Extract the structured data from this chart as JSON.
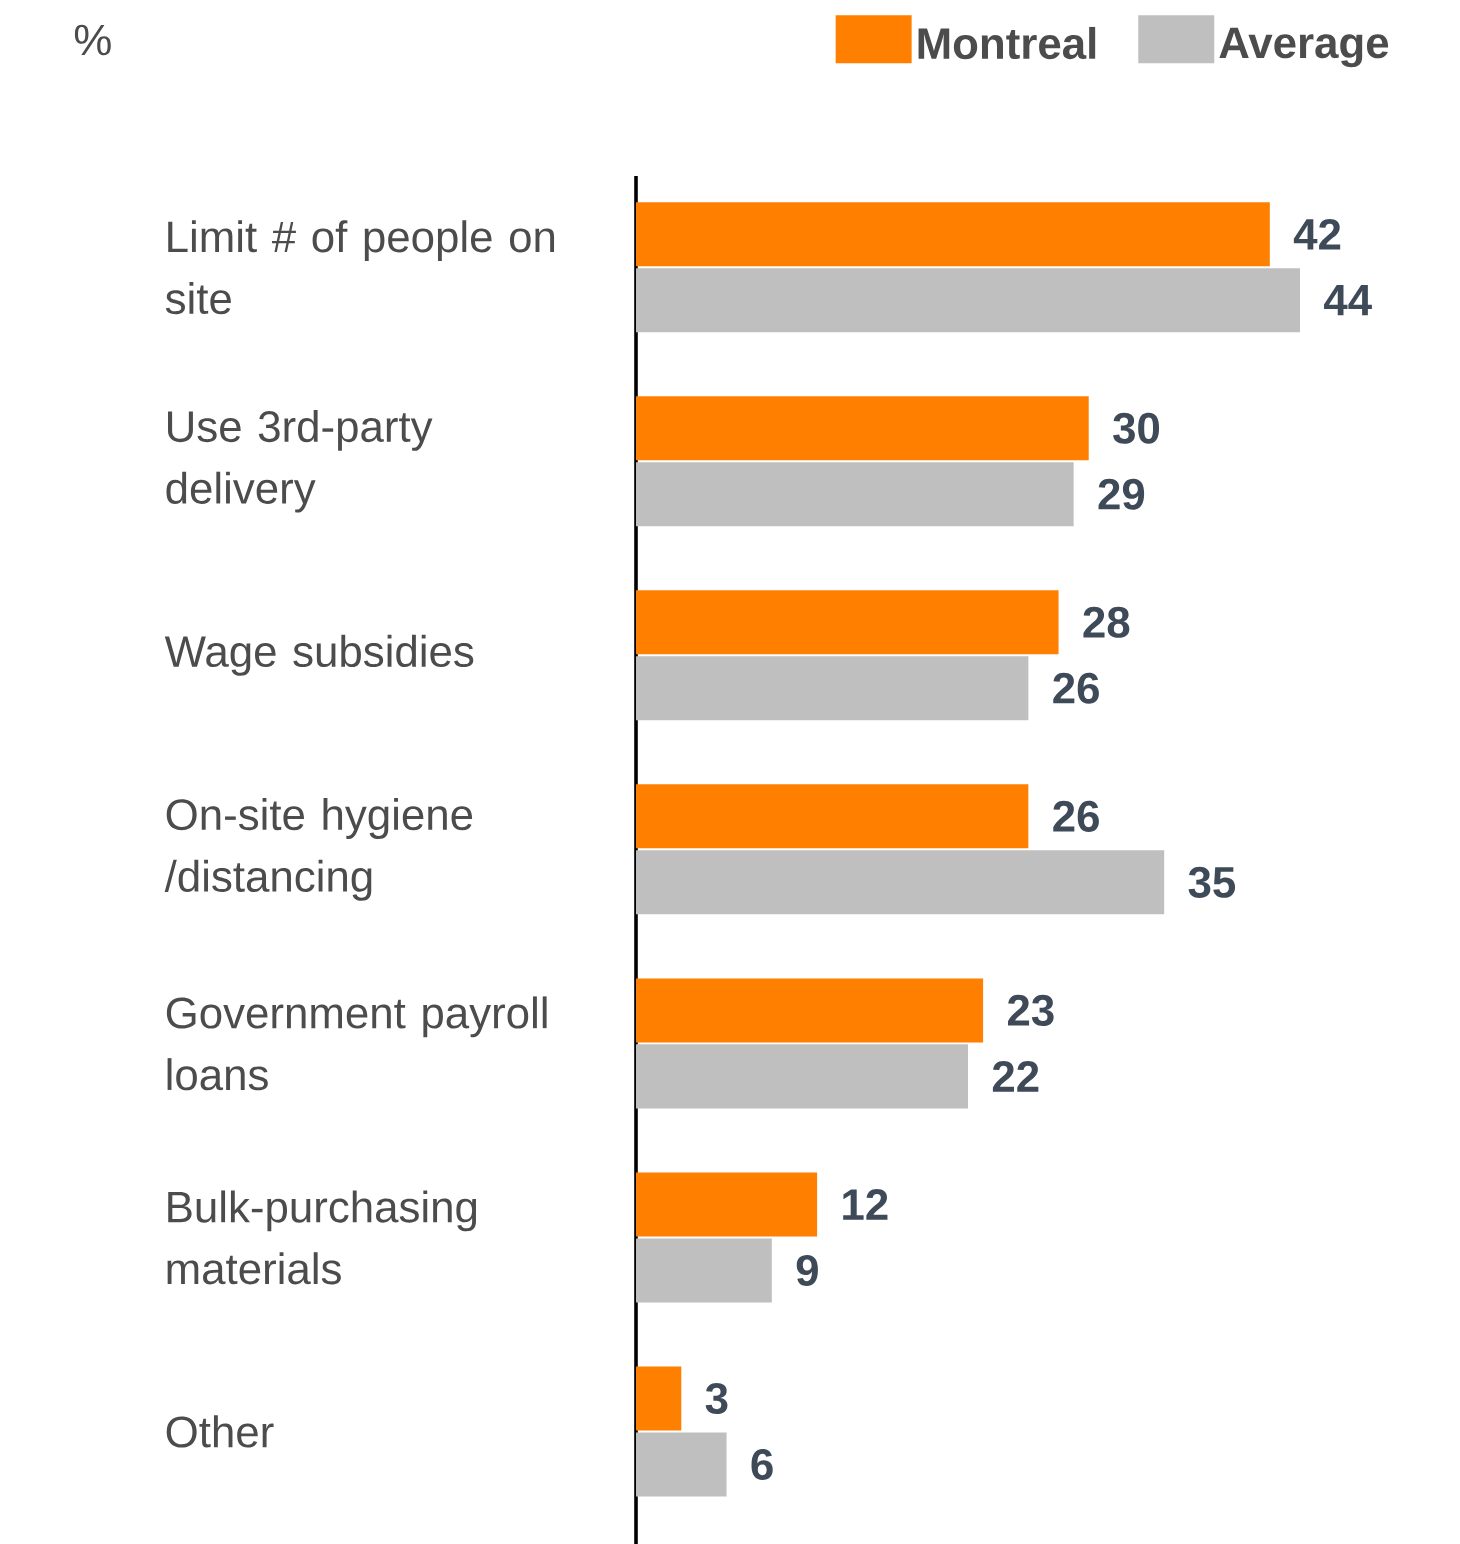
{
  "chart_data": {
    "type": "bar",
    "orientation": "horizontal",
    "annotations": [
      "%"
    ],
    "categories": [
      "Limit # of people on site",
      "Use 3rd-party delivery",
      "Wage subsidies",
      "On-site hygiene /distancing",
      "Government payroll loans",
      "Bulk-purchasing materials",
      "Other"
    ],
    "series": [
      {
        "name": "Montreal",
        "color": "#ff7f00",
        "values": [
          42,
          30,
          28,
          26,
          23,
          12,
          3
        ]
      },
      {
        "name": "Average",
        "color": "#bfbfbf",
        "values": [
          44,
          29,
          26,
          35,
          22,
          9,
          6
        ]
      }
    ],
    "data_labels": true,
    "legend": "top right",
    "tick_labels": "y"
  }
}
